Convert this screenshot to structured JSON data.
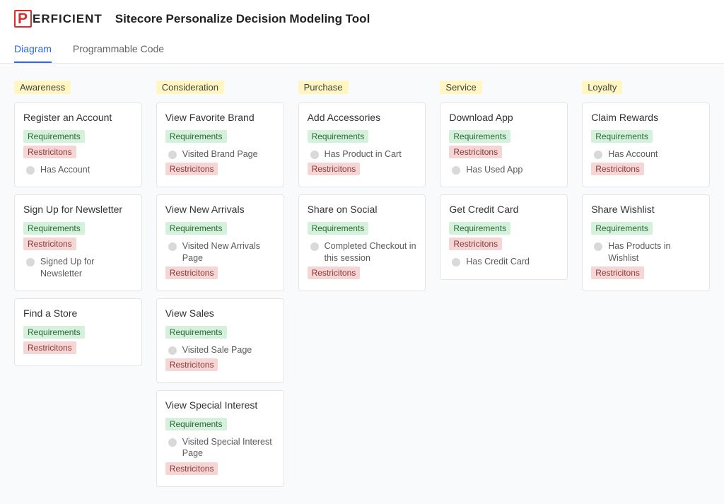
{
  "brand": {
    "mark": "P",
    "name": "ERFICIENT"
  },
  "pageTitle": "Sitecore Personalize Decision Modeling Tool",
  "tabs": [
    {
      "label": "Diagram",
      "active": true
    },
    {
      "label": "Programmable Code",
      "active": false
    }
  ],
  "labels": {
    "requirements": "Requirements",
    "restrictions": "Restricitons"
  },
  "colors": {
    "accent": "#2b63ff",
    "columnHeaderBg": "#fff6c2",
    "reqBg": "#d5f1db",
    "restBg": "#f6d5d5",
    "boardBg": "#f9fafb",
    "brandRed": "#d22f2f"
  },
  "columns": [
    {
      "title": "Awareness",
      "cards": [
        {
          "title": "Register an Account",
          "requirements": [],
          "restrictions": [],
          "bullets": [
            "Has Account"
          ],
          "bulletsAfter": "rest"
        },
        {
          "title": "Sign Up for Newsletter",
          "requirements": [],
          "restrictions": [],
          "bullets": [
            "Signed Up for Newsletter"
          ],
          "bulletsAfter": "rest"
        },
        {
          "title": "Find a Store",
          "requirements": [],
          "restrictions": [],
          "bullets": [],
          "bulletsAfter": "rest"
        }
      ]
    },
    {
      "title": "Consideration",
      "cards": [
        {
          "title": "View Favorite Brand",
          "requirements": [],
          "restrictions": [],
          "bullets": [
            "Visited Brand Page"
          ],
          "bulletsAfter": "req"
        },
        {
          "title": "View New Arrivals",
          "requirements": [],
          "restrictions": [],
          "bullets": [
            "Visited New Arrivals Page"
          ],
          "bulletsAfter": "req"
        },
        {
          "title": "View Sales",
          "requirements": [],
          "restrictions": [],
          "bullets": [
            "Visited Sale Page"
          ],
          "bulletsAfter": "req"
        },
        {
          "title": "View Special Interest",
          "requirements": [],
          "restrictions": [],
          "bullets": [
            "Visited Special Interest Page"
          ],
          "bulletsAfter": "req"
        }
      ]
    },
    {
      "title": "Purchase",
      "cards": [
        {
          "title": "Add Accessories",
          "requirements": [],
          "restrictions": [],
          "bullets": [
            "Has Product in Cart"
          ],
          "bulletsAfter": "req"
        },
        {
          "title": "Share on Social",
          "requirements": [],
          "restrictions": [],
          "bullets": [
            "Completed Checkout in this session"
          ],
          "bulletsAfter": "req"
        }
      ]
    },
    {
      "title": "Service",
      "cards": [
        {
          "title": "Download App",
          "requirements": [],
          "restrictions": [],
          "bullets": [
            "Has Used App"
          ],
          "bulletsAfter": "rest"
        },
        {
          "title": "Get Credit Card",
          "requirements": [],
          "restrictions": [],
          "bullets": [
            "Has Credit Card"
          ],
          "bulletsAfter": "rest"
        }
      ]
    },
    {
      "title": "Loyalty",
      "cards": [
        {
          "title": "Claim Rewards",
          "requirements": [],
          "restrictions": [],
          "bullets": [
            "Has Account"
          ],
          "bulletsAfter": "req"
        },
        {
          "title": "Share Wishlist",
          "requirements": [],
          "restrictions": [],
          "bullets": [
            "Has Products in Wishlist"
          ],
          "bulletsAfter": "req"
        }
      ]
    }
  ]
}
